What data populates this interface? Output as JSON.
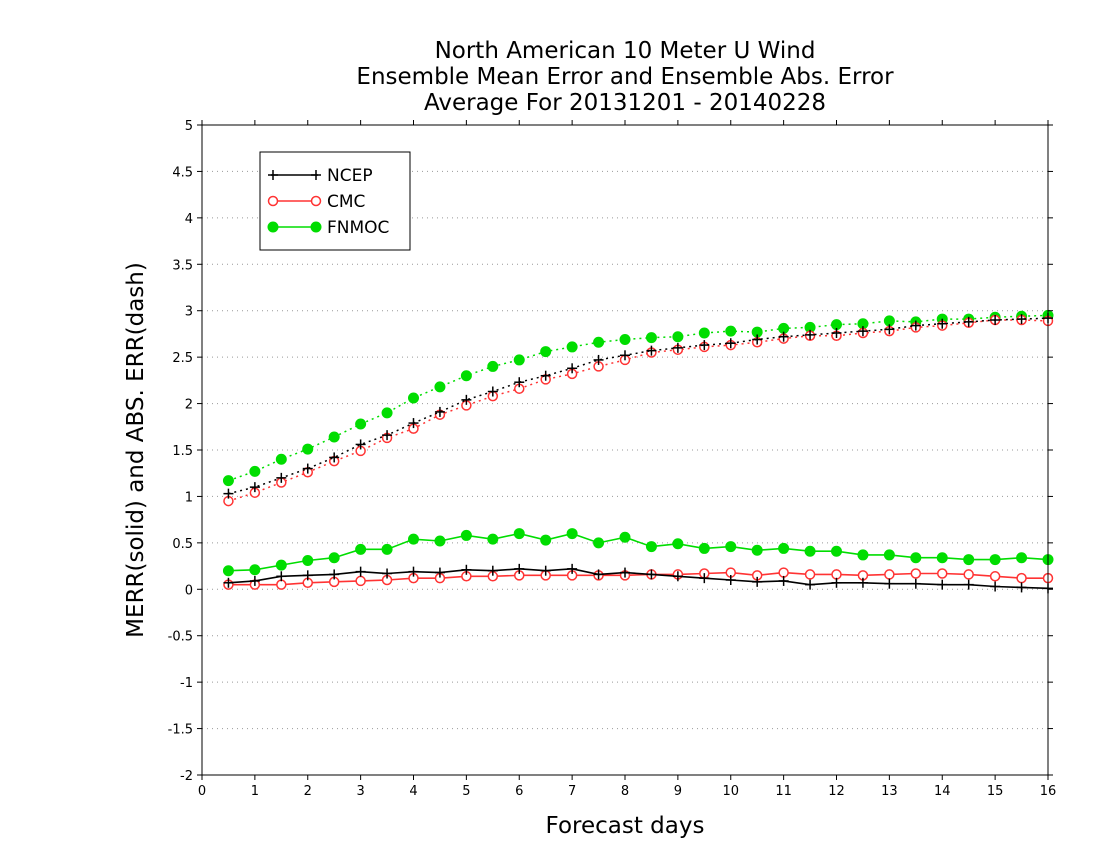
{
  "chart_data": {
    "type": "line",
    "title_lines": [
      "North American 10 Meter U Wind",
      "Ensemble Mean Error and Ensemble Abs. Error",
      "Average For 20131201 - 20140228"
    ],
    "xlabel": "Forecast days",
    "ylabel": "MERR(solid) and ABS. ERR(dash)",
    "xlim": [
      0,
      16
    ],
    "ylim": [
      -2,
      5
    ],
    "x_ticks": [
      0,
      1,
      2,
      3,
      4,
      5,
      6,
      7,
      8,
      9,
      10,
      11,
      12,
      13,
      14,
      15,
      16
    ],
    "x_tick_labels": [
      "0",
      "1",
      "2",
      "3",
      "4",
      "5",
      "6",
      "7",
      "8",
      "9",
      "10",
      "11",
      "12",
      "13",
      "14",
      "15",
      "16"
    ],
    "y_ticks": [
      -2,
      -1.5,
      -1,
      -0.5,
      0,
      0.5,
      1,
      1.5,
      2,
      2.5,
      3,
      3.5,
      4,
      4.5,
      5
    ],
    "y_tick_labels": [
      "-2",
      "-1.5",
      "-1",
      "-0.5",
      "0",
      "0.5",
      "1",
      "1.5",
      "2",
      "2.5",
      "3",
      "3.5",
      "4",
      "4.5",
      "5"
    ],
    "grid": "horizontal dotted",
    "legend_position": "top-left",
    "x": [
      0.5,
      1,
      1.5,
      2,
      2.5,
      3,
      3.5,
      4,
      4.5,
      5,
      5.5,
      6,
      6.5,
      7,
      7.5,
      8,
      8.5,
      9,
      9.5,
      10,
      10.5,
      11,
      11.5,
      12,
      12.5,
      13,
      13.5,
      14,
      14.5,
      15,
      15.5,
      16
    ],
    "series": [
      {
        "name": "NCEP",
        "color": "#000000",
        "marker": "plus",
        "merr": [
          0.07,
          0.09,
          0.14,
          0.15,
          0.16,
          0.19,
          0.17,
          0.19,
          0.18,
          0.21,
          0.2,
          0.22,
          0.2,
          0.22,
          0.16,
          0.18,
          0.16,
          0.14,
          0.12,
          0.1,
          0.08,
          0.09,
          0.05,
          0.07,
          0.07,
          0.06,
          0.06,
          0.05,
          0.05,
          0.03,
          0.02,
          0.01
        ],
        "abs_err": [
          1.03,
          1.1,
          1.2,
          1.3,
          1.42,
          1.56,
          1.66,
          1.79,
          1.91,
          2.04,
          2.13,
          2.23,
          2.3,
          2.38,
          2.47,
          2.52,
          2.57,
          2.6,
          2.63,
          2.65,
          2.69,
          2.72,
          2.74,
          2.76,
          2.78,
          2.8,
          2.84,
          2.86,
          2.88,
          2.9,
          2.91,
          2.92
        ]
      },
      {
        "name": "CMC",
        "color": "#ff3333",
        "marker": "open-circle",
        "merr": [
          0.05,
          0.05,
          0.05,
          0.07,
          0.08,
          0.09,
          0.1,
          0.12,
          0.12,
          0.14,
          0.14,
          0.15,
          0.15,
          0.15,
          0.15,
          0.15,
          0.16,
          0.16,
          0.17,
          0.18,
          0.15,
          0.18,
          0.16,
          0.16,
          0.15,
          0.16,
          0.17,
          0.17,
          0.16,
          0.14,
          0.12,
          0.12
        ],
        "abs_err": [
          0.95,
          1.04,
          1.15,
          1.26,
          1.38,
          1.49,
          1.63,
          1.73,
          1.88,
          1.98,
          2.08,
          2.16,
          2.26,
          2.32,
          2.4,
          2.47,
          2.55,
          2.58,
          2.61,
          2.63,
          2.66,
          2.7,
          2.73,
          2.73,
          2.76,
          2.78,
          2.82,
          2.84,
          2.87,
          2.9,
          2.9,
          2.89
        ]
      },
      {
        "name": "FNMOC",
        "color": "#00dd00",
        "marker": "filled-circle",
        "merr": [
          0.2,
          0.21,
          0.26,
          0.31,
          0.34,
          0.43,
          0.43,
          0.54,
          0.52,
          0.58,
          0.54,
          0.6,
          0.53,
          0.6,
          0.5,
          0.56,
          0.46,
          0.49,
          0.44,
          0.46,
          0.42,
          0.44,
          0.41,
          0.41,
          0.37,
          0.37,
          0.34,
          0.34,
          0.32,
          0.32,
          0.34,
          0.32
        ],
        "abs_err": [
          1.17,
          1.27,
          1.4,
          1.51,
          1.64,
          1.78,
          1.9,
          2.06,
          2.18,
          2.3,
          2.4,
          2.47,
          2.56,
          2.61,
          2.66,
          2.69,
          2.71,
          2.72,
          2.76,
          2.78,
          2.77,
          2.81,
          2.82,
          2.85,
          2.86,
          2.89,
          2.88,
          2.91,
          2.91,
          2.93,
          2.94,
          2.95
        ]
      }
    ]
  }
}
